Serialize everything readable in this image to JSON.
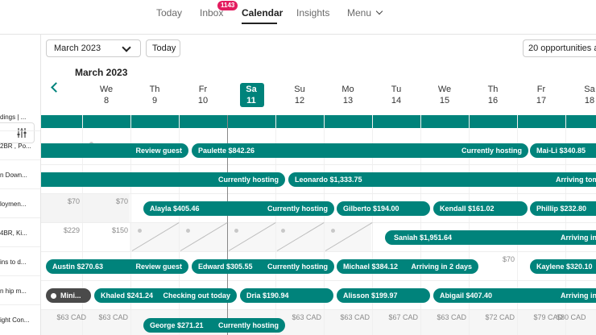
{
  "nav": {
    "today": "Today",
    "inbox": "Inbox",
    "inbox_badge": "1143",
    "calendar": "Calendar",
    "insights": "Insights",
    "menu": "Menu"
  },
  "toolbar": {
    "month_select": "March 2023",
    "today_button": "Today",
    "opportunities": "20 opportunities a"
  },
  "calendar": {
    "month_title": "March 2023",
    "days": [
      {
        "dow": "We",
        "num": "8"
      },
      {
        "dow": "Th",
        "num": "9"
      },
      {
        "dow": "Fr",
        "num": "10"
      },
      {
        "dow": "Sa",
        "num": "11"
      },
      {
        "dow": "Su",
        "num": "12"
      },
      {
        "dow": "Mo",
        "num": "13"
      },
      {
        "dow": "Tu",
        "num": "14"
      },
      {
        "dow": "We",
        "num": "15"
      },
      {
        "dow": "Th",
        "num": "16"
      },
      {
        "dow": "Fr",
        "num": "17"
      },
      {
        "dow": "Sa",
        "num": "18"
      }
    ]
  },
  "listings": [
    "dings | ...",
    "2BR , Po...",
    "n Down...",
    "loymen...",
    "4BR, Ki...",
    "ins to d...",
    "n hip m...",
    "ight Con..."
  ],
  "prices": {
    "r3_a": "$70",
    "r3_b": "$70",
    "r4_a": "$229",
    "r4_b": "$150",
    "r5_a": "$70",
    "r7_a": "$63 CAD",
    "r7_b": "$63 CAD",
    "r7_c": "$63 CAD",
    "r7_d": "$63 CAD",
    "r7_e": "$67 CAD",
    "r7_f": "$63 CAD",
    "r7_g": "$72 CAD",
    "r7_h": "$79 CAD",
    "r7_i": "$80 CAD"
  },
  "bookings": {
    "row1": {
      "review": "Review guest",
      "paulette": "Paulette  $842.26",
      "paulette_status": "Currently hosting",
      "maili": "Mai-Li  $340.85"
    },
    "row2": {
      "hosting": "Currently hosting",
      "leonardo": "Leonardo  $1,333.75",
      "arriving": "Arriving tom"
    },
    "row3": {
      "alayla": "Alayla  $405.46",
      "alayla_status": "Currently hosting",
      "gilberto": "Gilberto  $194.00",
      "kendall": "Kendall  $161.02",
      "phillip": "Phillip  $232.80"
    },
    "row4": {
      "saniah": "Saniah  $1,951.64",
      "arriving": "Arriving in"
    },
    "row5": {
      "austin": "Austin  $270.63",
      "review": "Review guest",
      "edward": "Edward  $305.55",
      "edward_status": "Currently hosting",
      "michael": "Michael  $384.12",
      "michael_status": "Arriving in 2 days",
      "kaylene": "Kaylene  $320.10"
    },
    "row6": {
      "mini": "Mini...",
      "khaled": "Khaled  $241.24",
      "khaled_status": "Checking out today",
      "dria": "Dria  $190.94",
      "alisson": "Alisson  $199.97",
      "abigail": "Abigail  $407.40",
      "arriving": "Arriving in"
    },
    "row7": {
      "george": "George  $271.21",
      "george_status": "Currently hosting"
    }
  },
  "colors": {
    "accent": "#00837b",
    "badge": "#e31c5f"
  }
}
